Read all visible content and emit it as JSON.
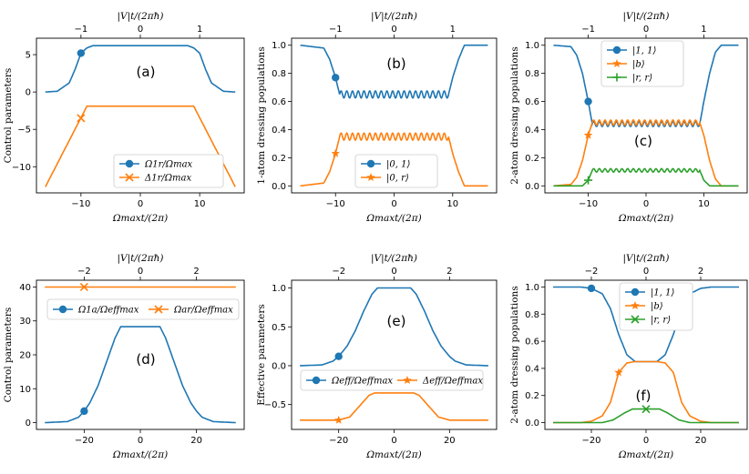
{
  "colors": {
    "blue": "#1f77b4",
    "orange": "#ff7f0e",
    "green": "#2ca02c"
  },
  "chart_data": [
    {
      "type": "line",
      "panel_label": "(a)",
      "xlabel": "Ωmaxt/(2π)",
      "top_xlabel": "|V|t/(2πħ)",
      "ylabel": "Control parameters",
      "xlim": [
        -17.5,
        17.5
      ],
      "ylim": [
        -13.5,
        7.2
      ],
      "xticks": [
        -10,
        0,
        10
      ],
      "xtick_labels": [
        "−10",
        "0",
        "10"
      ],
      "yticks": [
        -10,
        -5,
        0,
        5
      ],
      "ytick_labels": [
        "−10",
        "−5",
        "0",
        "5"
      ],
      "top_ticks": [
        -10,
        0,
        10
      ],
      "top_tick_labels": [
        "−1",
        "0",
        "1"
      ],
      "legend_position": "lower-center",
      "series": [
        {
          "name": "Ω1r/Ωmax",
          "color": "blue",
          "marker": "circle",
          "marker_point": [
            -10,
            5.2
          ],
          "x": [
            -16,
            -14,
            -12,
            -11,
            -10,
            -9,
            -8,
            -6,
            0,
            6,
            8,
            9,
            10,
            11,
            12,
            14,
            16
          ],
          "y": [
            0,
            0.1,
            1.2,
            3,
            5.2,
            5.9,
            6.2,
            6.2,
            6.2,
            6.2,
            6.2,
            5.9,
            5.2,
            3,
            1.2,
            0.1,
            0
          ]
        },
        {
          "name": "Δ1r/Ωmax",
          "color": "orange",
          "marker": "x",
          "marker_point": [
            -10,
            -3.5
          ],
          "x": [
            -16,
            -9,
            9,
            16
          ],
          "y": [
            -12.7,
            -1.9,
            -1.9,
            -12.7
          ]
        }
      ]
    },
    {
      "type": "line",
      "panel_label": "(b)",
      "xlabel": "Ωmaxt/(2π)",
      "top_xlabel": "|V|t/(2πħ)",
      "ylabel": "1-atom dressing populations",
      "xlim": [
        -17.5,
        17.5
      ],
      "ylim": [
        -0.05,
        1.05
      ],
      "xticks": [
        -10,
        0,
        10
      ],
      "xtick_labels": [
        "−10",
        "0",
        "10"
      ],
      "yticks": [
        0,
        0.2,
        0.4,
        0.6,
        0.8,
        1.0
      ],
      "ytick_labels": [
        "0.0",
        "0.2",
        "0.4",
        "0.6",
        "0.8",
        "1.0"
      ],
      "top_ticks": [
        -10,
        0,
        10
      ],
      "top_tick_labels": [
        "−1",
        "0",
        "1"
      ],
      "legend_position": "lower-center",
      "series": [
        {
          "name": "|0, 1⟩",
          "color": "blue",
          "marker": "circle",
          "marker_point": [
            -10,
            0.77
          ],
          "x": [
            -16,
            -12,
            -11,
            -10,
            -9.3,
            9.3,
            10,
            11,
            12,
            16
          ],
          "y": [
            1.0,
            0.98,
            0.9,
            0.77,
            0.65,
            0.65,
            0.77,
            0.9,
            1.0,
            1.0
          ],
          "osc_amp": 0.025
        },
        {
          "name": "|0, r⟩",
          "color": "orange",
          "marker": "star",
          "marker_point": [
            -10,
            0.23
          ],
          "x": [
            -16,
            -12,
            -11,
            -10,
            -9.3,
            9.3,
            10,
            11,
            12,
            16
          ],
          "y": [
            0,
            0.02,
            0.1,
            0.23,
            0.35,
            0.35,
            0.23,
            0.1,
            0,
            0
          ],
          "osc_amp": 0.025
        }
      ]
    },
    {
      "type": "line",
      "panel_label": "(c)",
      "xlabel": "Ωmaxt/(2π)",
      "top_xlabel": "|V|t/(2πħ)",
      "ylabel": "2-atom dressing populations",
      "xlim": [
        -17.5,
        17.5
      ],
      "ylim": [
        -0.05,
        1.05
      ],
      "xticks": [
        -10,
        0,
        10
      ],
      "xtick_labels": [
        "−10",
        "0",
        "10"
      ],
      "yticks": [
        0,
        0.2,
        0.4,
        0.6,
        0.8,
        1.0
      ],
      "ytick_labels": [
        "0.0",
        "0.2",
        "0.4",
        "0.6",
        "0.8",
        "1.0"
      ],
      "top_ticks": [
        -10,
        0,
        10
      ],
      "top_tick_labels": [
        "−1",
        "0",
        "1"
      ],
      "legend_position": "top-center",
      "series": [
        {
          "name": "|1, 1⟩",
          "color": "blue",
          "marker": "circle",
          "marker_point": [
            -10,
            0.6
          ],
          "x": [
            -16,
            -13,
            -12,
            -11,
            -10,
            -9.3,
            9.3,
            10,
            11,
            12,
            13,
            16
          ],
          "y": [
            1.0,
            0.99,
            0.93,
            0.8,
            0.6,
            0.44,
            0.44,
            0.6,
            0.8,
            0.95,
            1.0,
            1.0
          ],
          "osc_amp": 0.018
        },
        {
          "name": "|b⟩",
          "color": "orange",
          "marker": "star",
          "marker_point": [
            -10,
            0.36
          ],
          "x": [
            -16,
            -13,
            -12,
            -11,
            -10,
            -9.3,
            9.3,
            10,
            11,
            12,
            13,
            16
          ],
          "y": [
            0,
            0.01,
            0.06,
            0.18,
            0.36,
            0.45,
            0.45,
            0.36,
            0.18,
            0.05,
            0,
            0
          ],
          "osc_amp": 0.018
        },
        {
          "name": "|r, r⟩",
          "color": "green",
          "marker": "plus",
          "marker_point": [
            -10,
            0.04
          ],
          "x": [
            -16,
            -11,
            -10,
            -9.3,
            9.3,
            10,
            11,
            16
          ],
          "y": [
            0,
            0,
            0.04,
            0.11,
            0.11,
            0.04,
            0,
            0
          ],
          "osc_amp": 0.012
        }
      ]
    },
    {
      "type": "line",
      "panel_label": "(d)",
      "xlabel": "Ωmaxt/(2π)",
      "top_xlabel": "|V|t/(2πħ)",
      "ylabel": "Control parameters",
      "xlim": [
        -37,
        37
      ],
      "ylim": [
        -2,
        42
      ],
      "xticks": [
        -20,
        0,
        20
      ],
      "xtick_labels": [
        "−20",
        "0",
        "20"
      ],
      "yticks": [
        0,
        10,
        20,
        30,
        40
      ],
      "ytick_labels": [
        "0",
        "10",
        "20",
        "30",
        "40"
      ],
      "top_ticks": [
        -20,
        0,
        20
      ],
      "top_tick_labels": [
        "−2",
        "0",
        "2"
      ],
      "legend_position": "upper-center",
      "series": [
        {
          "name": "Ω1a/Ωeffmax",
          "color": "blue",
          "marker": "circle",
          "marker_point": [
            -20,
            3.4
          ],
          "x": [
            -34,
            -26,
            -22,
            -20,
            -18,
            -15,
            -12,
            -9,
            -7,
            7,
            9,
            12,
            15,
            18,
            20,
            22,
            26,
            34
          ],
          "y": [
            0,
            0.3,
            1.6,
            3.4,
            5.8,
            11,
            18,
            25,
            28.3,
            28.3,
            25,
            18,
            11,
            5.8,
            3.4,
            1.6,
            0.3,
            0
          ]
        },
        {
          "name": "Ωar/Ωeffmax",
          "color": "orange",
          "marker": "x",
          "marker_point": [
            -20,
            40
          ],
          "x": [
            -34,
            34
          ],
          "y": [
            40,
            40
          ]
        }
      ]
    },
    {
      "type": "line",
      "panel_label": "(e)",
      "xlabel": "Ωmaxt/(2π)",
      "top_xlabel": "|V|t/(2πħ)",
      "ylabel": "Effective parameters",
      "xlim": [
        -37,
        37
      ],
      "ylim": [
        -0.82,
        1.1
      ],
      "xticks": [
        -20,
        0,
        20
      ],
      "xtick_labels": [
        "−20",
        "0",
        "20"
      ],
      "yticks": [
        -0.5,
        0,
        0.5,
        1.0
      ],
      "ytick_labels": [
        "−0.5",
        "0.0",
        "0.5",
        "1.0"
      ],
      "top_ticks": [
        -20,
        0,
        20
      ],
      "top_tick_labels": [
        "−2",
        "0",
        "2"
      ],
      "legend_position": "center",
      "series": [
        {
          "name": "Ωeff/Ωeffmax",
          "color": "blue",
          "marker": "circle",
          "marker_point": [
            -20,
            0.12
          ],
          "x": [
            -34,
            -26,
            -22,
            -20,
            -17,
            -14,
            -11,
            -8,
            -6,
            6,
            8,
            11,
            14,
            17,
            20,
            22,
            26,
            34
          ],
          "y": [
            0,
            0.01,
            0.06,
            0.12,
            0.25,
            0.45,
            0.7,
            0.92,
            1.0,
            1.0,
            0.92,
            0.7,
            0.45,
            0.25,
            0.12,
            0.06,
            0.01,
            0
          ]
        },
        {
          "name": "Δeff/Ωeffmax",
          "color": "orange",
          "marker": "star",
          "marker_point": [
            -20,
            -0.7
          ],
          "x": [
            -34,
            -22,
            -20,
            -16,
            -12,
            -9,
            -7,
            7,
            9,
            12,
            16,
            20,
            22,
            34
          ],
          "y": [
            -0.7,
            -0.7,
            -0.7,
            -0.66,
            -0.5,
            -0.38,
            -0.35,
            -0.35,
            -0.38,
            -0.5,
            -0.66,
            -0.7,
            -0.7,
            -0.7
          ]
        }
      ]
    },
    {
      "type": "line",
      "panel_label": "(f)",
      "xlabel": "Ωmaxt/(2π)",
      "top_xlabel": "|V|t/(2πħ)",
      "ylabel": "2-atom dressing populations",
      "xlim": [
        -37,
        37
      ],
      "ylim": [
        -0.05,
        1.05
      ],
      "xticks": [
        -20,
        0,
        20
      ],
      "xtick_labels": [
        "−20",
        "0",
        "20"
      ],
      "yticks": [
        0,
        0.2,
        0.4,
        0.6,
        0.8,
        1.0
      ],
      "ytick_labels": [
        "0.0",
        "0.2",
        "0.4",
        "0.6",
        "0.8",
        "1.0"
      ],
      "top_ticks": [
        -20,
        0,
        20
      ],
      "top_tick_labels": [
        "−2",
        "0",
        "2"
      ],
      "legend_position": "top-right",
      "series": [
        {
          "name": "|1, 1⟩",
          "color": "blue",
          "marker": "circle",
          "marker_point": [
            -20,
            0.99
          ],
          "x": [
            -34,
            -24,
            -20,
            -16,
            -13,
            -10,
            -7,
            -4,
            4,
            7,
            10,
            13,
            16,
            20,
            24,
            34
          ],
          "y": [
            1.0,
            1.0,
            0.99,
            0.95,
            0.84,
            0.65,
            0.5,
            0.45,
            0.45,
            0.5,
            0.65,
            0.84,
            0.95,
            0.99,
            1.0,
            1.0
          ]
        },
        {
          "name": "|b⟩",
          "color": "orange",
          "marker": "star",
          "marker_point": [
            -10,
            0.37
          ],
          "x": [
            -34,
            -24,
            -20,
            -16,
            -13,
            -10,
            -7,
            -4,
            4,
            7,
            10,
            13,
            16,
            20,
            24,
            34
          ],
          "y": [
            0,
            0,
            0.01,
            0.05,
            0.15,
            0.37,
            0.44,
            0.45,
            0.45,
            0.44,
            0.37,
            0.15,
            0.05,
            0.01,
            0,
            0
          ]
        },
        {
          "name": "|r, r⟩",
          "color": "green",
          "marker": "x",
          "marker_point": [
            0,
            0.1
          ],
          "x": [
            -34,
            -16,
            -12,
            -8,
            -5,
            5,
            8,
            12,
            16,
            34
          ],
          "y": [
            0,
            0,
            0.02,
            0.07,
            0.1,
            0.1,
            0.07,
            0.02,
            0,
            0
          ]
        }
      ]
    }
  ]
}
